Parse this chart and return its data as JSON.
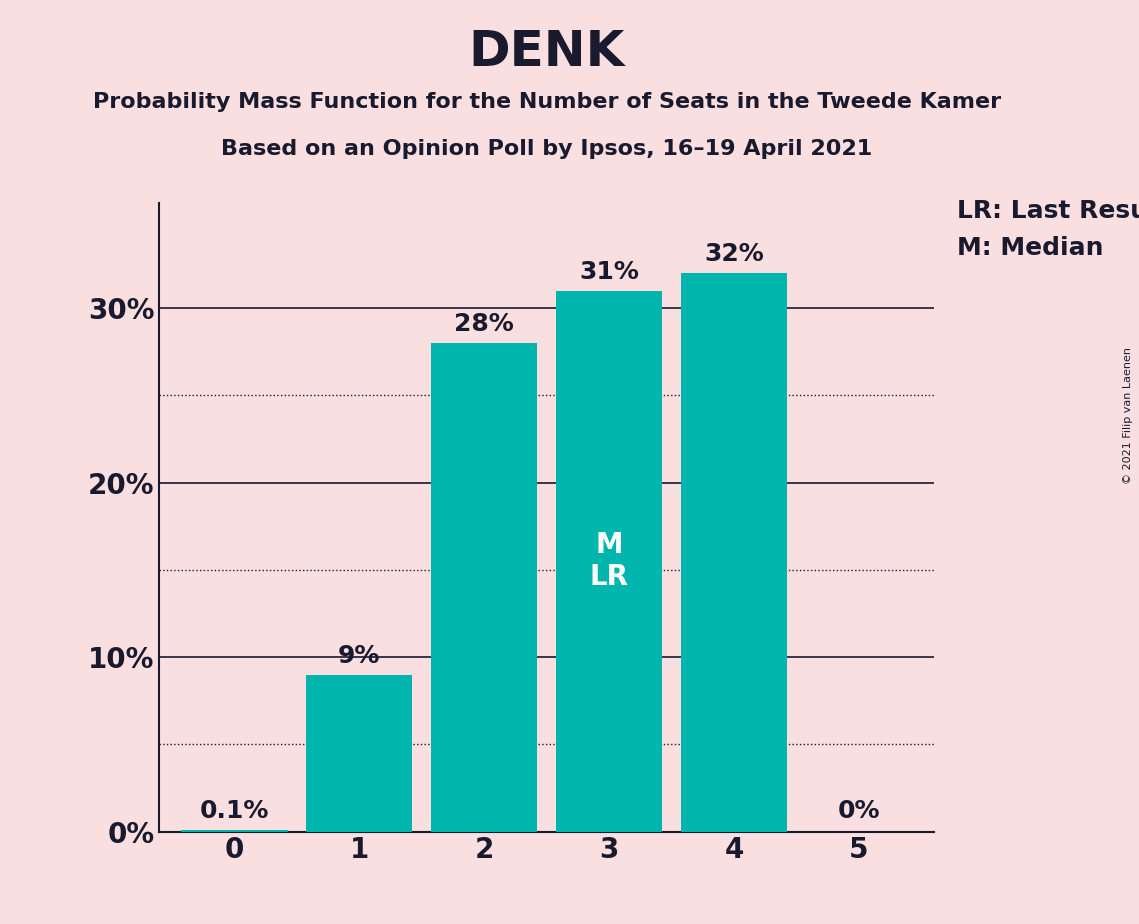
{
  "title": "DENK",
  "subtitle1": "Probability Mass Function for the Number of Seats in the Tweede Kamer",
  "subtitle2": "Based on an Opinion Poll by Ipsos, 16–19 April 2021",
  "copyright": "© 2021 Filip van Laenen",
  "categories": [
    0,
    1,
    2,
    3,
    4,
    5
  ],
  "values": [
    0.1,
    9,
    28,
    31,
    32,
    0
  ],
  "bar_color": "#00B5AD",
  "background_color": "#F9DFE0",
  "text_color": "#1a1a2e",
  "bar_labels": [
    "0.1%",
    "9%",
    "28%",
    "31%",
    "32%",
    "0%"
  ],
  "median_bar": 3,
  "last_result_bar": 3,
  "legend_lr": "LR: Last Result",
  "legend_m": "M: Median",
  "yticks": [
    0,
    10,
    20,
    30
  ],
  "solid_hlines": [
    10,
    20,
    30
  ],
  "dotted_hlines": [
    5,
    15,
    25
  ],
  "ylim": [
    0,
    36
  ],
  "title_fontsize": 36,
  "subtitle_fontsize": 16,
  "bar_label_fontsize": 18,
  "tick_fontsize": 20,
  "legend_fontsize": 18,
  "inside_label_fontsize": 20,
  "copyright_fontsize": 8
}
